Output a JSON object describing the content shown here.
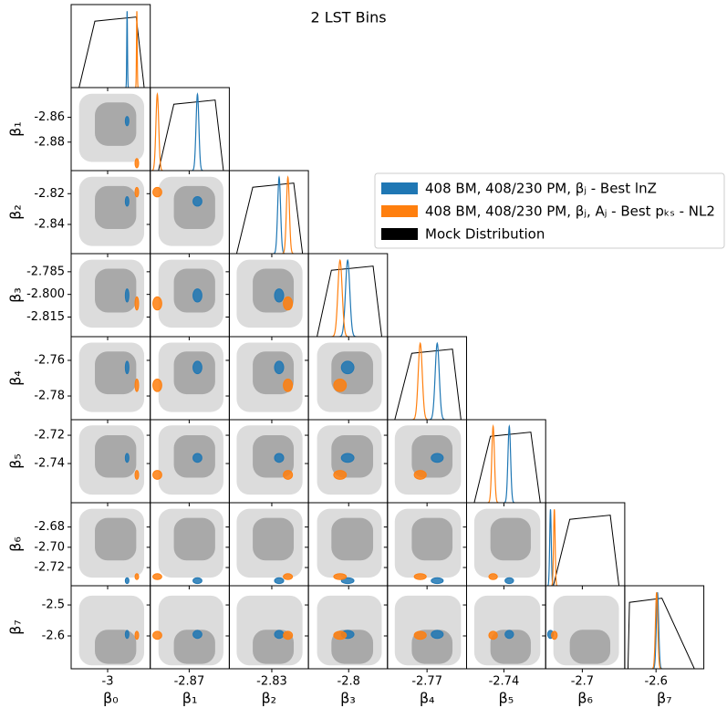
{
  "chart_data": {
    "type": "corner",
    "title": "2 LST Bins",
    "params": [
      {
        "label": "β₀",
        "lim": [
          -3.06,
          -2.93
        ],
        "xticks": [
          -3
        ],
        "mock_outer": [
          -3.047,
          -2.94
        ],
        "mock_inner": [
          -3.021,
          -2.953
        ]
      },
      {
        "label": "β₁",
        "lim": [
          -2.903,
          -2.836
        ],
        "xticks": [
          -2.87
        ],
        "yticks": [
          -2.86,
          -2.88
        ],
        "mock_outer": [
          -2.896,
          -2.841
        ],
        "mock_inner": [
          -2.883,
          -2.848
        ]
      },
      {
        "label": "β₂",
        "lim": [
          -2.859,
          -2.805
        ],
        "xticks": [
          -2.83
        ],
        "yticks": [
          -2.82,
          -2.84
        ],
        "mock_outer": [
          -2.854,
          -2.809
        ],
        "mock_inner": [
          -2.843,
          -2.815
        ]
      },
      {
        "label": "β₃",
        "lim": [
          -2.828,
          -2.773
        ],
        "xticks": [
          -2.8
        ],
        "yticks": [
          -2.785,
          {
            "value": -2.8,
            "label": "-2.800"
          },
          -2.815
        ],
        "mock_outer": [
          -2.822,
          -2.777
        ],
        "mock_inner": [
          -2.812,
          -2.783
        ]
      },
      {
        "label": "β₄",
        "lim": [
          -2.7933,
          -2.7467
        ],
        "xticks": [
          -2.77
        ],
        "yticks": [
          -2.76,
          -2.78
        ],
        "mock_outer": [
          -2.789,
          -2.75
        ],
        "mock_inner": [
          -2.779,
          -2.755
        ]
      },
      {
        "label": "β₅",
        "lim": [
          -2.7677,
          -2.709
        ],
        "xticks": [
          -2.74
        ],
        "yticks": [
          -2.72,
          -2.74
        ],
        "mock_outer": [
          -2.762,
          -2.713
        ],
        "mock_inner": [
          -2.75,
          -2.72
        ]
      },
      {
        "label": "β₆",
        "lim": [
          -2.738,
          -2.656
        ],
        "xticks": [
          {
            "value": -2.7,
            "label": "-2.7"
          }
        ],
        "yticks": [
          -2.68,
          {
            "value": -2.7,
            "label": "-2.70"
          },
          -2.72
        ],
        "mock_outer": [
          -2.73,
          -2.662
        ],
        "mock_inner": [
          -2.713,
          -2.671
        ]
      },
      {
        "label": "β₇",
        "lim": [
          -2.706,
          -2.438
        ],
        "xticks": [
          -2.6
        ],
        "yticks": [
          -2.5,
          -2.6
        ],
        "mock_outer": [
          -2.695,
          -2.47
        ],
        "mock_inner": [
          -2.69,
          -2.58
        ]
      }
    ],
    "series": [
      {
        "name": "408 BM, 408/230 PM, βⱼ - Best lnZ",
        "color": "#1f77b4",
        "means": [
          -2.968,
          -2.863,
          -2.825,
          -2.8007,
          -2.764,
          -2.736,
          -2.733,
          -2.595
        ],
        "sds": [
          0.0006,
          0.0012,
          0.001,
          0.0015,
          0.0012,
          0.001,
          0.0008,
          0.004
        ]
      },
      {
        "name": "408 BM, 408/230 PM, βⱼ, Aⱼ - Best pₖₛ - NL2",
        "color": "#ff7f0e",
        "means": [
          -2.952,
          -2.897,
          -2.819,
          -2.806,
          -2.774,
          -2.748,
          -2.729,
          -2.598
        ],
        "sds": [
          0.0006,
          0.0012,
          0.001,
          0.0015,
          0.0012,
          0.001,
          0.0008,
          0.004
        ]
      }
    ],
    "mock": {
      "name": "Mock Distribution",
      "color": "#000000",
      "outer_color": "#dcdcdc",
      "inner_color": "#a9a9a9"
    }
  }
}
